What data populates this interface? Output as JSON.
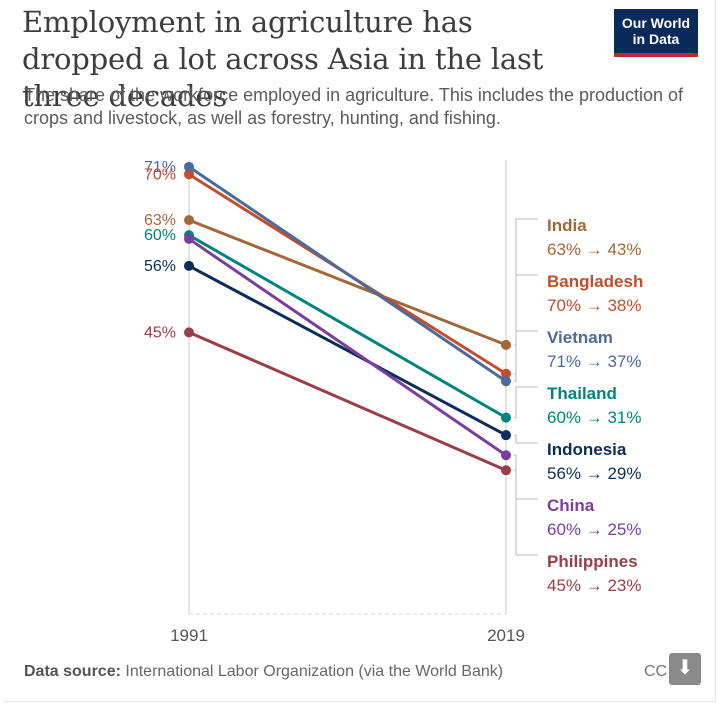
{
  "header": {
    "title": "Employment in agriculture has dropped a lot across Asia in the last three decades",
    "subtitle": "The share of the workforce employed in agriculture. This includes the production of crops and livestock, as well as forestry, hunting, and fishing.",
    "logo_line1": "Our World",
    "logo_line2": "in Data"
  },
  "footer": {
    "source_label": "Data source:",
    "source_text": "International Labor Organization (via the World Bank)",
    "license": "CC",
    "download_icon": "download-icon"
  },
  "chart_data": {
    "type": "line",
    "title": "Employment in agriculture has dropped a lot across Asia in the last three decades",
    "subtitle": "The share of the workforce employed in agriculture. This includes the production of crops and livestock, as well as forestry, hunting, and fishing.",
    "x": [
      "1991",
      "2019"
    ],
    "ylim": [
      0,
      100
    ],
    "grid": false,
    "legend_position": "right",
    "start_labels": [
      {
        "text": "71%",
        "value": 71.4,
        "color": "#4c6a9c"
      },
      {
        "text": "70%",
        "value": 70.2,
        "color": "#c44d2c"
      },
      {
        "text": "63%",
        "value": 62.9,
        "color": "#a2683a"
      },
      {
        "text": "60%",
        "value": 60.5,
        "color": "#00847e"
      },
      {
        "text": "56%",
        "value": 55.6,
        "color": "#0b2d5b"
      },
      {
        "text": "45%",
        "value": 45.0,
        "color": "#9a3e47"
      }
    ],
    "series": [
      {
        "name": "India",
        "values": [
          62.9,
          43.0
        ],
        "start": "63%",
        "end": "43%",
        "color": "#a2683a"
      },
      {
        "name": "Bangladesh",
        "values": [
          70.2,
          38.4
        ],
        "start": "70%",
        "end": "38%",
        "color": "#c44d2c"
      },
      {
        "name": "Vietnam",
        "values": [
          71.4,
          37.2
        ],
        "start": "71%",
        "end": "37%",
        "color": "#4c6a9c"
      },
      {
        "name": "Thailand",
        "values": [
          60.5,
          31.4
        ],
        "start": "60%",
        "end": "31%",
        "color": "#00847e"
      },
      {
        "name": "Indonesia",
        "values": [
          55.6,
          28.6
        ],
        "start": "56%",
        "end": "29%",
        "color": "#0b2d5b"
      },
      {
        "name": "China",
        "values": [
          59.9,
          25.4
        ],
        "start": "60%",
        "end": "25%",
        "color": "#7a3f9e"
      },
      {
        "name": "Philippines",
        "values": [
          45.0,
          23.0
        ],
        "start": "45%",
        "end": "23%",
        "color": "#9a3e47"
      }
    ],
    "arrow": "→"
  }
}
